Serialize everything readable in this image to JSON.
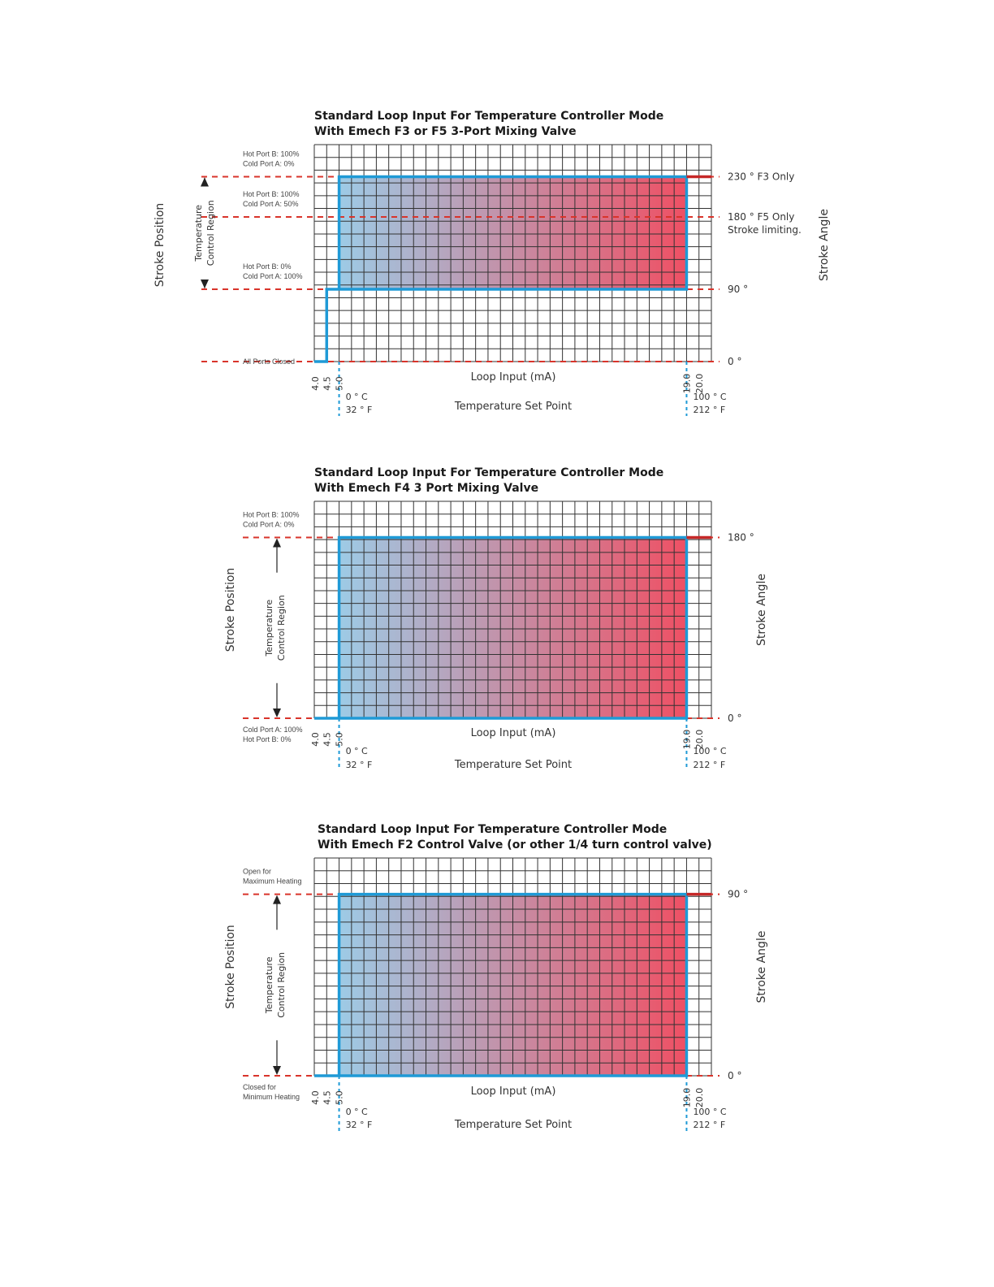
{
  "chart_data": [
    {
      "type": "line",
      "title": [
        "Standard Loop Input For Temperature Controller Mode",
        "With Emech F3 or F5 3-Port Mixing Valve"
      ],
      "xlabel": "Loop Input (mA)",
      "x2label": "Temperature Set Point",
      "ylabel": "Stroke Position",
      "y2label": "Stroke Angle",
      "region_label": [
        "Temperature",
        "Control Region"
      ],
      "xlim": [
        4.0,
        20.0
      ],
      "ylim": [
        0,
        270
      ],
      "x_ticks": [
        {
          "value": 4.0,
          "label": "4.0"
        },
        {
          "value": 4.5,
          "label": "4.5"
        },
        {
          "value": 5.0,
          "label": "5.0"
        },
        {
          "value": 19.0,
          "label": "19.0"
        },
        {
          "value": 20.0,
          "label": "20.0"
        }
      ],
      "temp_marks": [
        {
          "x": 5.0,
          "c": "0 ° C",
          "f": "32 ° F"
        },
        {
          "x": 19.0,
          "c": "100 ° C",
          "f": "212 ° F"
        }
      ],
      "ref_lines": [
        {
          "y": 230,
          "right": [
            "230 ° F3 Only"
          ],
          "left": [
            "Hot Port B:  100%",
            "Cold Port A: 0%"
          ]
        },
        {
          "y": 180,
          "right": [
            "180 ° F5 Only",
            "Stroke limiting."
          ],
          "left": [
            "Hot Port B:  100%",
            "Cold Port A: 50%"
          ]
        },
        {
          "y": 90,
          "right": [
            "90 °"
          ],
          "left": [
            "Hot Port B:   0%",
            "Cold Port A: 100%"
          ]
        },
        {
          "y": 0,
          "right": [
            "0 °"
          ],
          "left": [
            "All Ports Closed"
          ]
        }
      ],
      "region_y": [
        90,
        230
      ],
      "series": [
        {
          "values": [
            [
              4.0,
              0
            ],
            [
              4.5,
              0
            ],
            [
              4.5,
              90
            ],
            [
              5.0,
              90
            ],
            [
              5.0,
              230
            ],
            [
              19.0,
              230
            ],
            [
              19.0,
              90
            ],
            [
              5.0,
              90
            ]
          ]
        }
      ],
      "overflow": [
        [
          19.0,
          230
        ],
        [
          20.0,
          230
        ]
      ],
      "colors": {
        "grid": "#333333",
        "ref": "#d9342b",
        "line": "#1f9ad6",
        "overflow": "#c62828",
        "grad_start": "#9dcbe6",
        "grad_end": "#ef5064"
      }
    },
    {
      "type": "line",
      "title": [
        "Standard Loop Input For Temperature Controller Mode",
        "With Emech F4 3 Port Mixing Valve"
      ],
      "xlabel": "Loop Input (mA)",
      "x2label": "Temperature Set Point",
      "ylabel": "Stroke Position",
      "y2label": "Stroke Angle",
      "region_label": [
        "Temperature",
        "Control Region"
      ],
      "xlim": [
        4.0,
        20.0
      ],
      "ylim": [
        0,
        216
      ],
      "x_ticks": [
        {
          "value": 4.0,
          "label": "4.0"
        },
        {
          "value": 4.5,
          "label": "4.5"
        },
        {
          "value": 5.0,
          "label": "5.0"
        },
        {
          "value": 19.0,
          "label": "19.0"
        },
        {
          "value": 20.0,
          "label": "20.0"
        }
      ],
      "temp_marks": [
        {
          "x": 5.0,
          "c": "0 ° C",
          "f": "32 ° F"
        },
        {
          "x": 19.0,
          "c": "100 ° C",
          "f": "212 ° F"
        }
      ],
      "ref_lines": [
        {
          "y": 180,
          "right": [
            "180 °"
          ],
          "left": [
            "Hot Port B:  100%",
            "Cold Port A: 0%"
          ]
        },
        {
          "y": 0,
          "right": [
            "0 °"
          ],
          "left": [
            "Cold Port A: 100%",
            "Hot Port B:   0%"
          ]
        }
      ],
      "region_y": [
        0,
        180
      ],
      "series": [
        {
          "values": [
            [
              4.0,
              0
            ],
            [
              5.0,
              0
            ],
            [
              5.0,
              180
            ],
            [
              19.0,
              180
            ],
            [
              19.0,
              0
            ],
            [
              5.0,
              0
            ]
          ]
        }
      ],
      "overflow": [
        [
          19.0,
          180
        ],
        [
          20.0,
          180
        ]
      ],
      "colors": {
        "grid": "#333333",
        "ref": "#d9342b",
        "line": "#1f9ad6",
        "overflow": "#c62828",
        "grad_start": "#9dcbe6",
        "grad_end": "#ef5064"
      }
    },
    {
      "type": "line",
      "title": [
        "Standard Loop Input For Temperature Controller Mode",
        "With Emech F2 Control Valve (or other 1/4 turn control valve)"
      ],
      "xlabel": "Loop Input (mA)",
      "x2label": "Temperature Set Point",
      "ylabel": "Stroke Position",
      "y2label": "Stroke Angle",
      "region_label": [
        "Temperature",
        "Control Region"
      ],
      "xlim": [
        4.0,
        20.0
      ],
      "ylim": [
        0,
        108
      ],
      "x_ticks": [
        {
          "value": 4.0,
          "label": "4.0"
        },
        {
          "value": 4.5,
          "label": "4.5"
        },
        {
          "value": 5.0,
          "label": "5.0"
        },
        {
          "value": 19.0,
          "label": "19.0"
        },
        {
          "value": 20.0,
          "label": "20.0"
        }
      ],
      "temp_marks": [
        {
          "x": 5.0,
          "c": "0 ° C",
          "f": "32 ° F"
        },
        {
          "x": 19.0,
          "c": "100 ° C",
          "f": "212 ° F"
        }
      ],
      "ref_lines": [
        {
          "y": 90,
          "right": [
            "90 °"
          ],
          "left": [
            "Open for",
            "Maximum Heating"
          ]
        },
        {
          "y": 0,
          "right": [
            "0 °"
          ],
          "left": [
            "Closed for",
            "Minimum Heating"
          ]
        }
      ],
      "region_y": [
        0,
        90
      ],
      "series": [
        {
          "values": [
            [
              4.0,
              0
            ],
            [
              5.0,
              0
            ],
            [
              5.0,
              90
            ],
            [
              19.0,
              90
            ],
            [
              19.0,
              0
            ],
            [
              5.0,
              0
            ]
          ]
        }
      ],
      "overflow": [
        [
          19.0,
          90
        ],
        [
          20.0,
          90
        ]
      ],
      "colors": {
        "grid": "#333333",
        "ref": "#d9342b",
        "line": "#1f9ad6",
        "overflow": "#c62828",
        "grad_start": "#9dcbe6",
        "grad_end": "#ef5064"
      }
    }
  ]
}
